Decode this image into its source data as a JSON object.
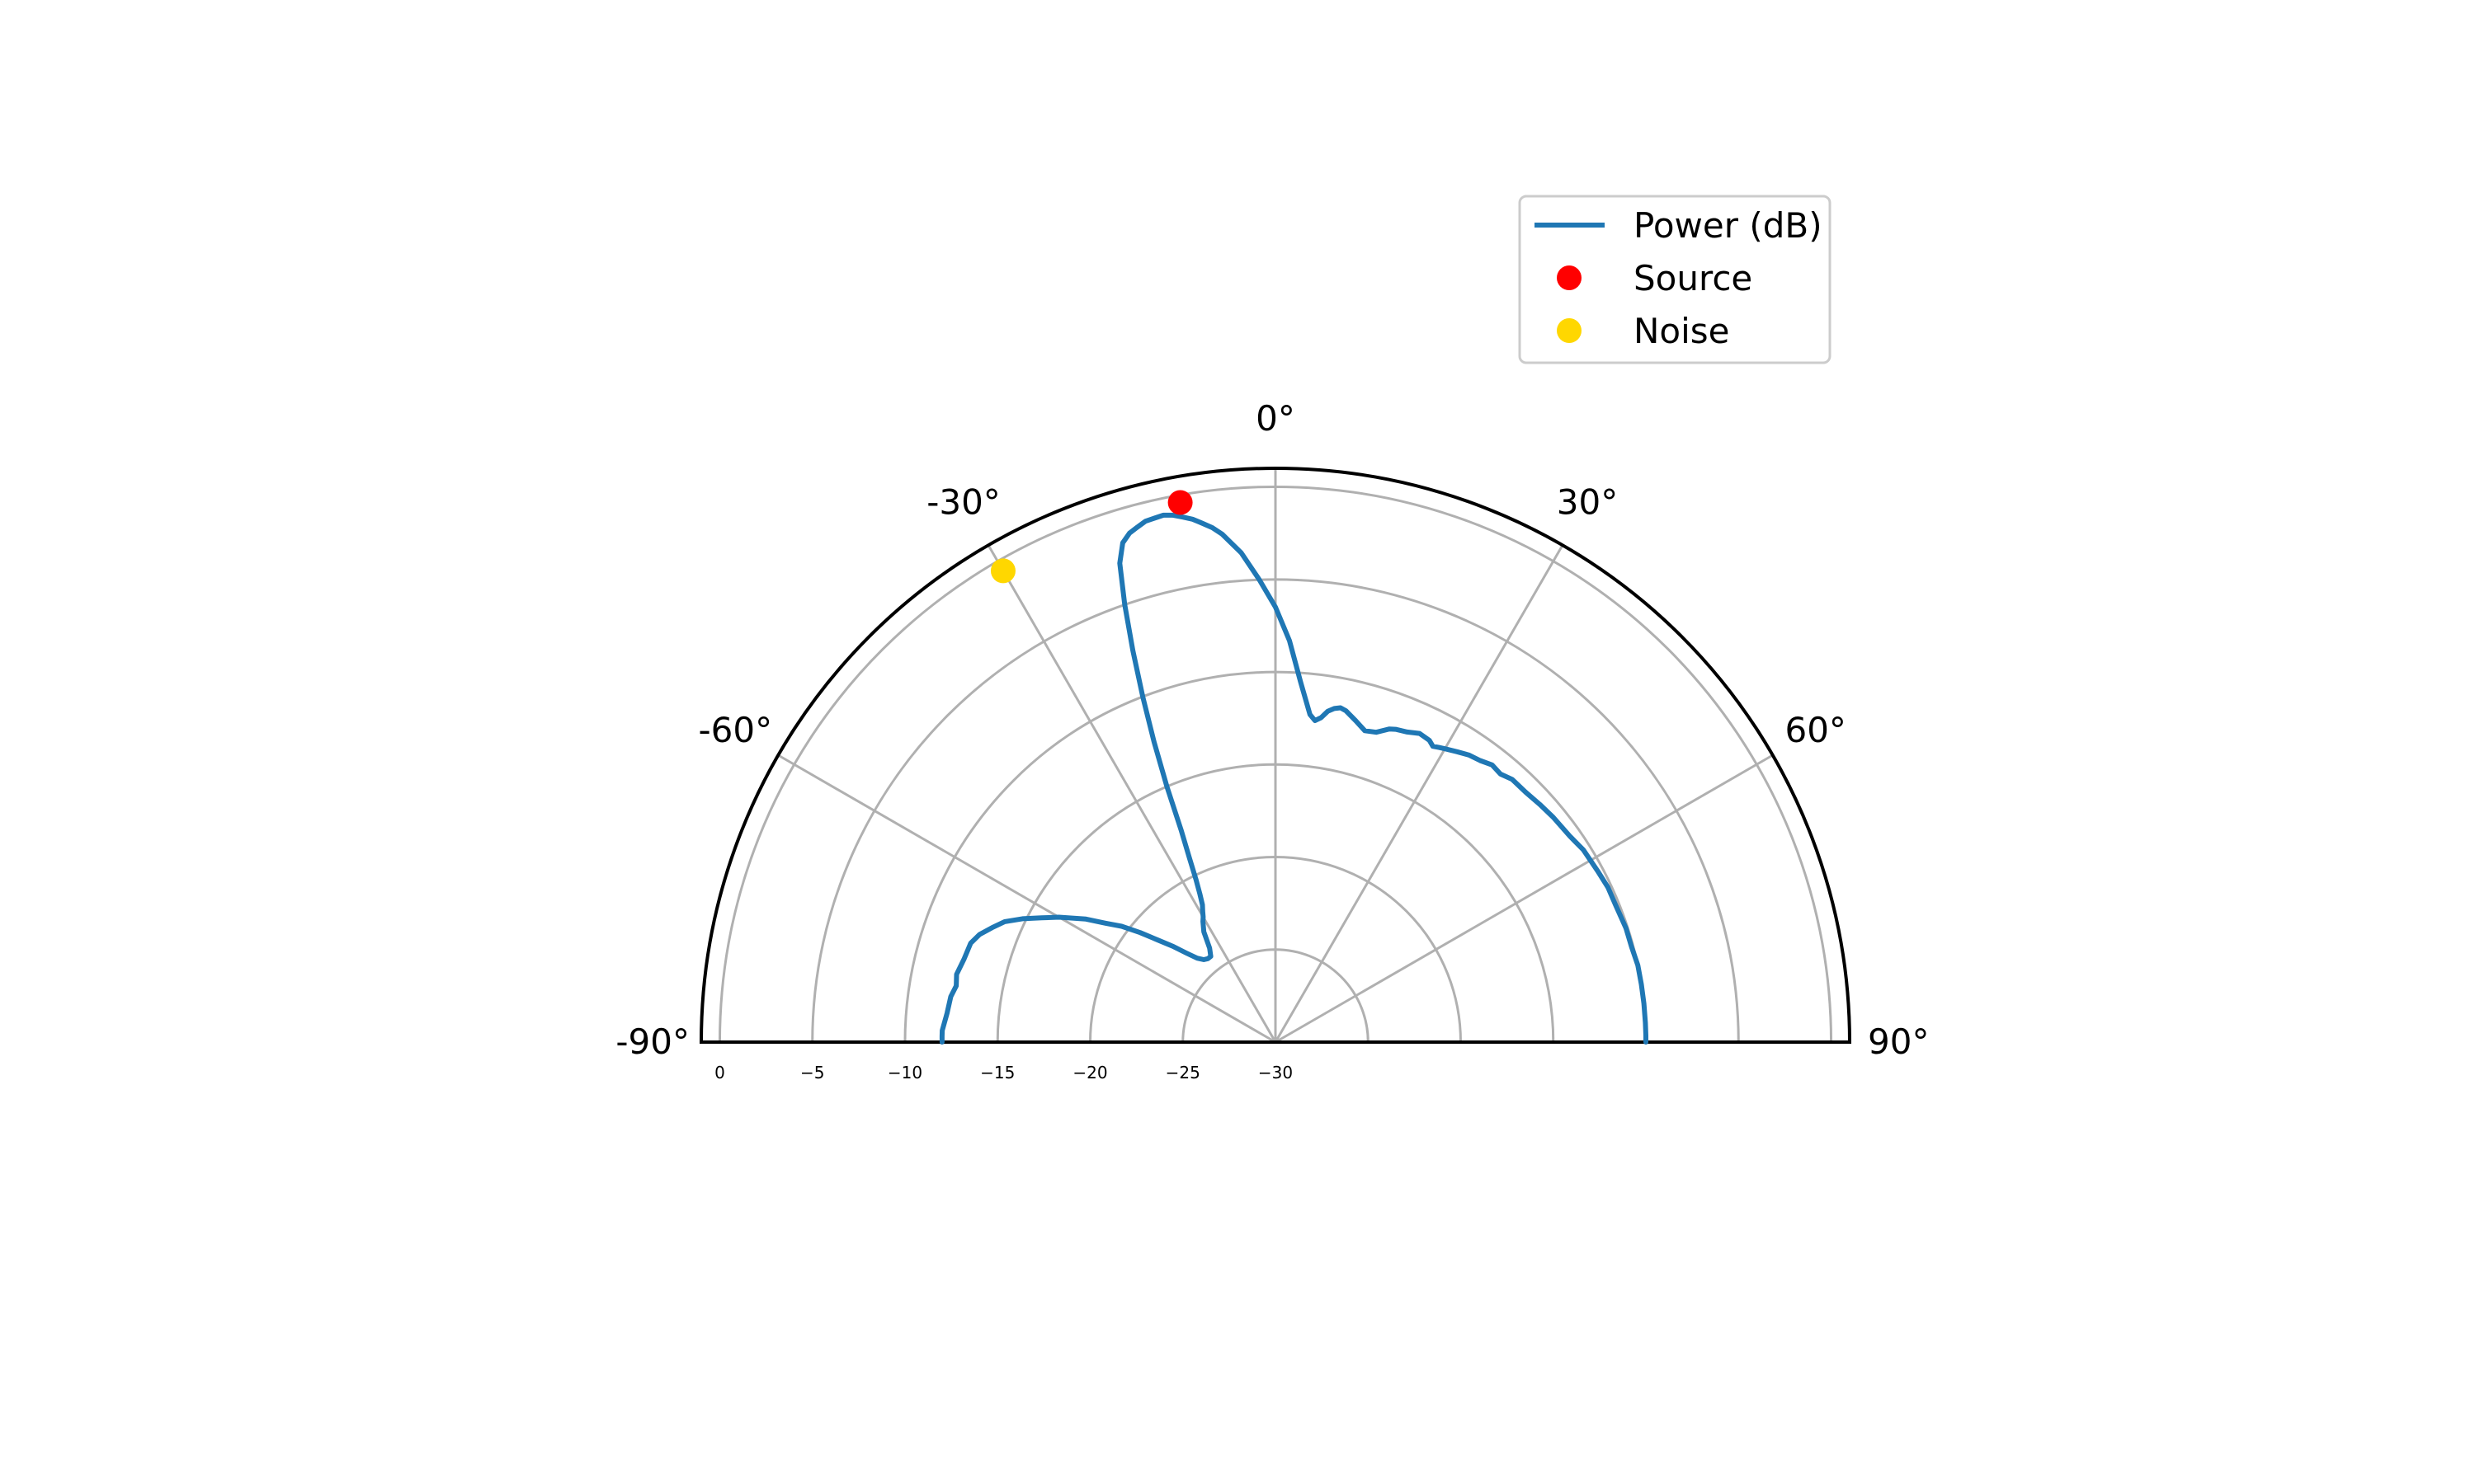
{
  "chart_data": {
    "type": "polar-line",
    "title": "",
    "theta_unit": "deg",
    "theta_range": [
      -90,
      90
    ],
    "theta_zero": "top",
    "theta_ticks": [
      -90,
      -60,
      -30,
      0,
      30,
      60,
      90
    ],
    "theta_tick_labels": [
      "-90°",
      "-60°",
      "-30°",
      "0°",
      "30°",
      "60°",
      "90°"
    ],
    "r_range": [
      -30,
      1
    ],
    "r_outer_edge_is_max": true,
    "r_ticks": [
      0,
      -5,
      -10,
      -15,
      -20,
      -25,
      -30
    ],
    "r_tick_labels": [
      "0",
      "−5",
      "−10",
      "−15",
      "−20",
      "−25",
      "−30"
    ],
    "grid": true,
    "legend": {
      "placement": "upper-right",
      "entries": [
        "Power (dB)",
        "Source",
        "Noise"
      ]
    },
    "series": [
      {
        "name": "Power (dB)",
        "kind": "line",
        "color": "#1f77b4",
        "theta": [
          -90,
          -89,
          -88,
          -85,
          -82,
          -80,
          -78,
          -75,
          -72,
          -70,
          -68,
          -66,
          -64,
          -62,
          -60,
          -57,
          -55,
          -53,
          -51,
          -49,
          -47,
          -45,
          -43,
          -41,
          -39,
          -37,
          -35,
          -33,
          -31,
          -30,
          -29,
          -28,
          -27,
          -26,
          -25,
          -24,
          -23,
          -22,
          -21,
          -20,
          -19,
          -18,
          -17,
          -16,
          -15,
          -14,
          -13,
          -12,
          -11,
          -10,
          -9,
          -8,
          -7,
          -6,
          -4,
          -2,
          0,
          2,
          4,
          6,
          7,
          8,
          9,
          10,
          11,
          12,
          14,
          16,
          18,
          20,
          21,
          23,
          25,
          27,
          28,
          29,
          30,
          32,
          34,
          36,
          38,
          40,
          42,
          45,
          48,
          51,
          55,
          58,
          62,
          65,
          68,
          72,
          75,
          78,
          81,
          84,
          87,
          89,
          90
        ],
        "r": [
          -12,
          -12,
          -12,
          -12.2,
          -12.3,
          -12.5,
          -12.4,
          -12.6,
          -12.7,
          -13,
          -13.5,
          -14,
          -14.8,
          -15.7,
          -16.5,
          -17.8,
          -18.8,
          -19.6,
          -20.6,
          -21.6,
          -22.4,
          -23.2,
          -23.8,
          -24.1,
          -24.2,
          -24.2,
          -23.8,
          -22.9,
          -22.4,
          -22.2,
          -21.9,
          -21.6,
          -21,
          -20.2,
          -19,
          -17.5,
          -15,
          -12.5,
          -10,
          -7.5,
          -5,
          -2.8,
          -1.8,
          -1.4,
          -1.2,
          -1,
          -0.95,
          -0.9,
          -1,
          -1.2,
          -1.4,
          -1.7,
          -2,
          -2.4,
          -3.5,
          -5,
          -6.5,
          -8.3,
          -10.5,
          -12.2,
          -12.5,
          -12.3,
          -11.9,
          -11.7,
          -11.6,
          -11.7,
          -12.1,
          -12.5,
          -12.4,
          -12.0,
          -11.9,
          -11.8,
          -11.6,
          -11.7,
          -11.9,
          -11.8,
          -11.7,
          -11.5,
          -11.3,
          -11.2,
          -11.0,
          -11.1,
          -10.9,
          -10.9,
          -10.8,
          -10.7,
          -10.6,
          -10.4,
          -10.3,
          -10.2,
          -10.2,
          -10.1,
          -10.1,
          -10.0,
          -10.0,
          -10.0,
          -10.0,
          -10.0,
          -10.0
        ]
      },
      {
        "name": "Source",
        "kind": "point",
        "color": "#ff0000",
        "theta": [
          -10
        ],
        "r": [
          -0.4
        ]
      },
      {
        "name": "Noise",
        "kind": "point",
        "color": "#ffd700",
        "theta": [
          -30
        ],
        "r": [
          -0.6
        ]
      }
    ]
  }
}
